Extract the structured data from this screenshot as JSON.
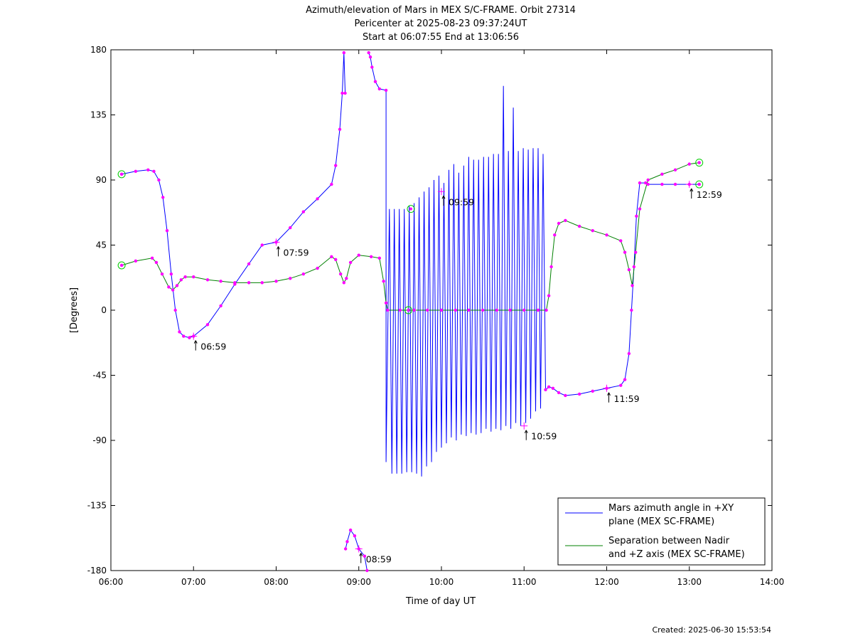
{
  "chart_data": {
    "type": "line",
    "title_lines": [
      "Azimuth/elevation of Mars in MEX S/C-FRAME.  Orbit 27314",
      "Pericenter at 2025-08-23 09:37:24UT",
      "Start at 06:07:55 End at 13:06:56"
    ],
    "xlabel": "Time of day UT",
    "ylabel": "[Degrees]",
    "xlim": [
      6.0,
      14.0
    ],
    "ylim": [
      -180,
      180
    ],
    "xticks": [
      6,
      7,
      8,
      9,
      10,
      11,
      12,
      13,
      14
    ],
    "xtick_labels": [
      "06:00",
      "07:00",
      "08:00",
      "09:00",
      "10:00",
      "11:00",
      "12:00",
      "13:00",
      "14:00"
    ],
    "yticks": [
      180,
      135,
      90,
      45,
      0,
      -45,
      -90,
      -135,
      -180
    ],
    "ytick_labels": [
      "180",
      "135",
      "90",
      "45",
      "0",
      "-45",
      "-90",
      "-135",
      "-180"
    ],
    "grid": false,
    "legend_position": "bottom-right",
    "series": [
      {
        "name": "Mars azimuth angle in +XY plane (MEX SC-FRAME)",
        "legend_lines": [
          "Mars azimuth angle in +XY",
          "plane (MEX SC-FRAME)"
        ],
        "color": "#0000ff",
        "x": [
          6.13,
          6.3,
          6.45,
          6.52,
          6.58,
          6.63,
          6.68,
          6.73,
          6.78,
          6.83,
          6.88,
          6.95,
          7.0,
          7.17,
          7.33,
          7.5,
          7.67,
          7.83,
          8.0,
          8.17,
          8.33,
          8.5,
          8.67,
          8.72,
          8.77,
          8.8,
          8.82,
          8.835,
          8.84,
          8.86,
          8.9,
          8.95,
          9.0,
          9.07,
          9.1,
          9.12,
          9.14,
          9.16,
          9.2,
          9.25,
          9.33
        ],
        "y": [
          94,
          96,
          97,
          96,
          90,
          78,
          55,
          25,
          0,
          -15,
          -18,
          -19,
          -18,
          -10,
          3,
          18,
          32,
          45,
          47,
          57,
          68,
          77,
          87,
          100,
          125,
          150,
          178,
          150,
          -165,
          -160,
          -152,
          -156,
          -165,
          -170,
          -180,
          178,
          175,
          168,
          158,
          153,
          152
        ],
        "dense_oscillation": {
          "x": [
            9.33,
            9.37,
            9.4,
            9.43,
            9.46,
            9.49,
            9.52,
            9.55,
            9.58,
            9.61,
            9.64,
            9.67,
            9.7,
            9.73,
            9.76,
            9.79,
            9.82,
            9.85,
            9.88,
            9.91,
            9.94,
            9.97,
            10.0,
            10.03,
            10.06,
            10.09,
            10.12,
            10.15,
            10.18,
            10.21,
            10.24,
            10.27,
            10.3,
            10.33,
            10.36,
            10.39,
            10.42,
            10.45,
            10.48,
            10.51,
            10.54,
            10.57,
            10.6,
            10.63,
            10.66,
            10.69,
            10.72,
            10.75,
            10.78,
            10.81,
            10.84,
            10.87,
            10.9,
            10.93,
            10.96,
            10.99,
            11.02,
            11.05,
            11.08,
            11.11,
            11.14,
            11.17,
            11.2,
            11.23,
            11.26
          ],
          "y": [
            -105,
            70,
            -113,
            70,
            -113,
            70,
            -113,
            70,
            -112,
            72,
            -112,
            74,
            -113,
            78,
            -115,
            82,
            -108,
            85,
            -105,
            90,
            -98,
            93,
            -95,
            88,
            -92,
            97,
            -88,
            101,
            -90,
            95,
            -86,
            100,
            -87,
            106,
            -85,
            104,
            -86,
            104,
            -85,
            106,
            -82,
            106,
            -84,
            108,
            -82,
            108,
            -83,
            155,
            -80,
            110,
            -82,
            140,
            -78,
            110,
            -80,
            112,
            -78,
            111,
            -75,
            112,
            -70,
            112,
            -68,
            108,
            -55
          ]
        },
        "x_tail": [
          11.26,
          11.3,
          11.35,
          11.42,
          11.5,
          11.67,
          11.83,
          12.0,
          12.17,
          12.22,
          12.27,
          12.3,
          12.33,
          12.36,
          12.4,
          12.47,
          12.5,
          12.67,
          12.83,
          13.0,
          13.12
        ],
        "y_tail": [
          -55,
          -53,
          -54,
          -57,
          -59,
          -58,
          -56,
          -54,
          -52,
          -48,
          -30,
          0,
          30,
          65,
          88,
          88,
          87,
          87,
          87,
          87,
          87
        ]
      },
      {
        "name": "Separation between Nadir and +Z axis (MEX SC-FRAME)",
        "legend_lines": [
          "Separation between Nadir",
          "and +Z axis (MEX SC-FRAME)"
        ],
        "color": "#008000",
        "x": [
          6.13,
          6.3,
          6.5,
          6.55,
          6.62,
          6.7,
          6.75,
          6.8,
          6.85,
          6.9,
          7.0,
          7.17,
          7.33,
          7.5,
          7.67,
          7.83,
          8.0,
          8.17,
          8.33,
          8.5,
          8.67,
          8.72,
          8.78,
          8.82,
          8.85,
          8.9,
          9.0,
          9.15,
          9.25,
          9.3,
          9.33,
          9.35,
          9.5,
          9.67,
          9.83,
          10.0,
          10.17,
          10.33,
          10.5,
          10.67,
          10.83,
          11.0,
          11.17,
          11.27,
          11.3,
          11.33,
          11.37,
          11.42,
          11.5,
          11.67,
          11.83,
          12.0,
          12.17,
          12.22,
          12.27,
          12.31,
          12.35,
          12.4,
          12.5,
          12.67,
          12.83,
          13.0,
          13.12
        ],
        "y": [
          31,
          34,
          36,
          33,
          25,
          16,
          14,
          17,
          21,
          23,
          23,
          21,
          20,
          19,
          19,
          19,
          20,
          22,
          25,
          29,
          37,
          35,
          25,
          19,
          22,
          33,
          38,
          37,
          36,
          20,
          5,
          0,
          0,
          0,
          0,
          0,
          0,
          0,
          0,
          0,
          0,
          0,
          0,
          0,
          10,
          30,
          52,
          60,
          62,
          58,
          55,
          52,
          48,
          40,
          28,
          17,
          40,
          70,
          90,
          94,
          97,
          101,
          102
        ]
      }
    ],
    "annotations": [
      {
        "text": "06:59",
        "x": 7.0,
        "y": -18
      },
      {
        "text": "07:59",
        "x": 8.0,
        "y": 47
      },
      {
        "text": "08:59",
        "x": 9.0,
        "y": -165
      },
      {
        "text": "09:59",
        "x": 10.0,
        "y": 82
      },
      {
        "text": "10:59",
        "x": 11.0,
        "y": -80
      },
      {
        "text": "11:59",
        "x": 12.0,
        "y": -54
      },
      {
        "text": "12:59",
        "x": 13.0,
        "y": 87
      }
    ],
    "start_end_markers": [
      {
        "x": 6.13,
        "y": 94
      },
      {
        "x": 6.13,
        "y": 31
      },
      {
        "x": 9.6,
        "y": 0
      },
      {
        "x": 9.63,
        "y": 70
      },
      {
        "x": 13.12,
        "y": 87
      },
      {
        "x": 13.12,
        "y": 102
      }
    ],
    "marker_color": "#ff00ff"
  },
  "footer": {
    "created": "Created: 2025-06-30 15:53:54"
  }
}
